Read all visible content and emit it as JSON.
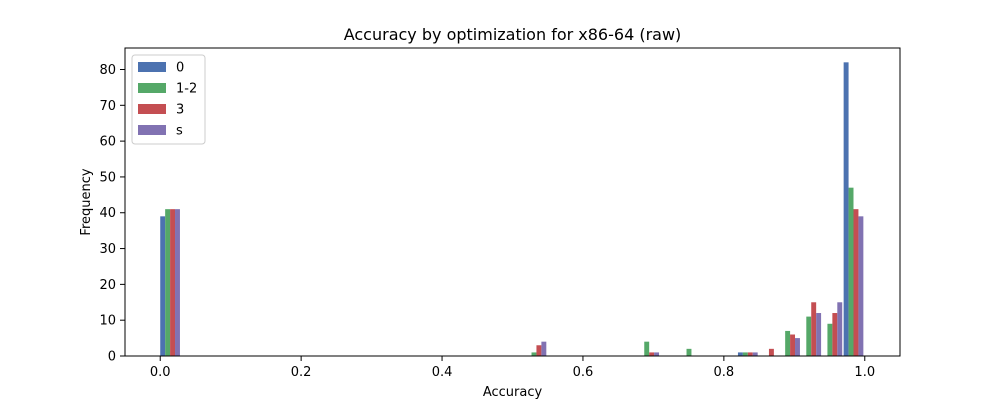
{
  "chart_data": {
    "type": "bar",
    "title": "Accuracy by optimization for x86-64 (raw)",
    "xlabel": "Accuracy",
    "ylabel": "Frequency",
    "xlim": [
      -0.05,
      1.05
    ],
    "ylim": [
      0,
      86
    ],
    "xticks": [
      0.0,
      0.2,
      0.4,
      0.6,
      0.8,
      1.0
    ],
    "xtick_labels": [
      "0.0",
      "0.2",
      "0.4",
      "0.6",
      "0.8",
      "1.0"
    ],
    "yticks": [
      0,
      10,
      20,
      30,
      40,
      50,
      60,
      70,
      80
    ],
    "ytick_labels": [
      "0",
      "10",
      "20",
      "30",
      "40",
      "50",
      "60",
      "70",
      "80"
    ],
    "bins": [
      0.0,
      0.52,
      0.68,
      0.74,
      0.82,
      0.85,
      0.88,
      0.91,
      0.94,
      0.97
    ],
    "bin_width": 0.028,
    "grid": false,
    "legend_position": "top-left",
    "series": [
      {
        "name": "0",
        "color": "#4c72b0",
        "values": [
          39,
          0,
          0,
          0,
          1,
          0,
          0,
          0,
          0,
          82
        ]
      },
      {
        "name": "1-2",
        "color": "#55a868",
        "values": [
          41,
          1,
          4,
          2,
          1,
          0,
          7,
          11,
          9,
          47
        ]
      },
      {
        "name": "3",
        "color": "#c44e52",
        "values": [
          41,
          3,
          1,
          0,
          1,
          2,
          6,
          15,
          12,
          41
        ]
      },
      {
        "name": "s",
        "color": "#8172b2",
        "values": [
          41,
          4,
          1,
          0,
          1,
          0,
          5,
          12,
          15,
          39
        ]
      }
    ]
  }
}
